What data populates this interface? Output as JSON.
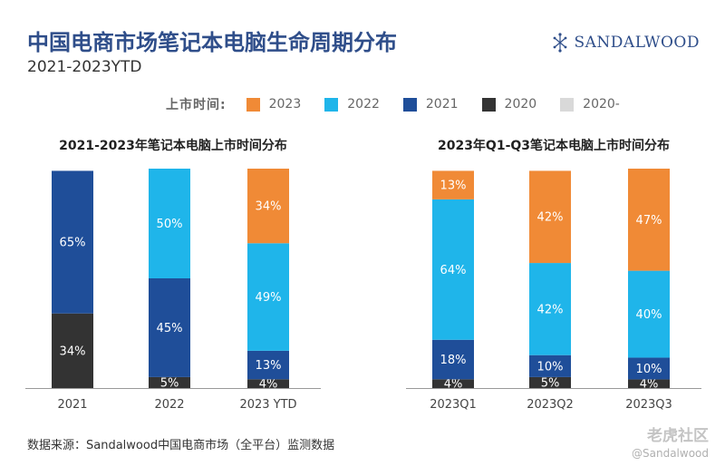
{
  "header": {
    "title": "中国电商市场笔记本电脑生命周期分布",
    "subtitle": "2021-2023YTD",
    "logo": "SANDALWOOD"
  },
  "legend": {
    "label": "上市时间:",
    "items": [
      {
        "name": "2023",
        "color": "#f08a36"
      },
      {
        "name": "2022",
        "color": "#1fb5ea"
      },
      {
        "name": "2021",
        "color": "#1f4e99"
      },
      {
        "name": "2020",
        "color": "#333333"
      },
      {
        "name": "2020-",
        "color": "#d9d9d9"
      }
    ]
  },
  "chart_data": [
    {
      "type": "bar",
      "stacked": true,
      "title": "2021-2023年笔记本电脑上市时间分布",
      "categories": [
        "2021",
        "2022",
        "2023 YTD"
      ],
      "series": [
        {
          "name": "2020",
          "color": "#333333",
          "values": [
            34,
            5,
            4
          ],
          "labels": [
            "34%",
            "5%",
            "4%"
          ]
        },
        {
          "name": "2021",
          "color": "#1f4e99",
          "values": [
            65,
            45,
            13
          ],
          "labels": [
            "65%",
            "45%",
            "13%"
          ]
        },
        {
          "name": "2022",
          "color": "#1fb5ea",
          "values": [
            0,
            50,
            49
          ],
          "labels": [
            "",
            "50%",
            "49%"
          ]
        },
        {
          "name": "2023",
          "color": "#f08a36",
          "values": [
            0,
            0,
            34
          ],
          "labels": [
            "",
            "",
            "34%"
          ]
        }
      ],
      "ylim": [
        0,
        100
      ]
    },
    {
      "type": "bar",
      "stacked": true,
      "title": "2023年Q1-Q3笔记本电脑上市时间分布",
      "categories": [
        "2023Q1",
        "2023Q2",
        "2023Q3"
      ],
      "series": [
        {
          "name": "2020",
          "color": "#333333",
          "values": [
            4,
            5,
            4
          ],
          "labels": [
            "4%",
            "5%",
            "4%"
          ]
        },
        {
          "name": "2021",
          "color": "#1f4e99",
          "values": [
            18,
            10,
            10
          ],
          "labels": [
            "18%",
            "10%",
            "10%"
          ]
        },
        {
          "name": "2022",
          "color": "#1fb5ea",
          "values": [
            64,
            42,
            40
          ],
          "labels": [
            "64%",
            "42%",
            "40%"
          ]
        },
        {
          "name": "2023",
          "color": "#f08a36",
          "values": [
            13,
            42,
            47
          ],
          "labels": [
            "13%",
            "42%",
            "47%"
          ]
        }
      ],
      "ylim": [
        0,
        100
      ]
    }
  ],
  "footer": {
    "source": "数据来源：Sandalwood中国电商市场（全平台）监测数据",
    "watermark": "老虎社区",
    "watermark_handle": "@Sandalwood"
  }
}
